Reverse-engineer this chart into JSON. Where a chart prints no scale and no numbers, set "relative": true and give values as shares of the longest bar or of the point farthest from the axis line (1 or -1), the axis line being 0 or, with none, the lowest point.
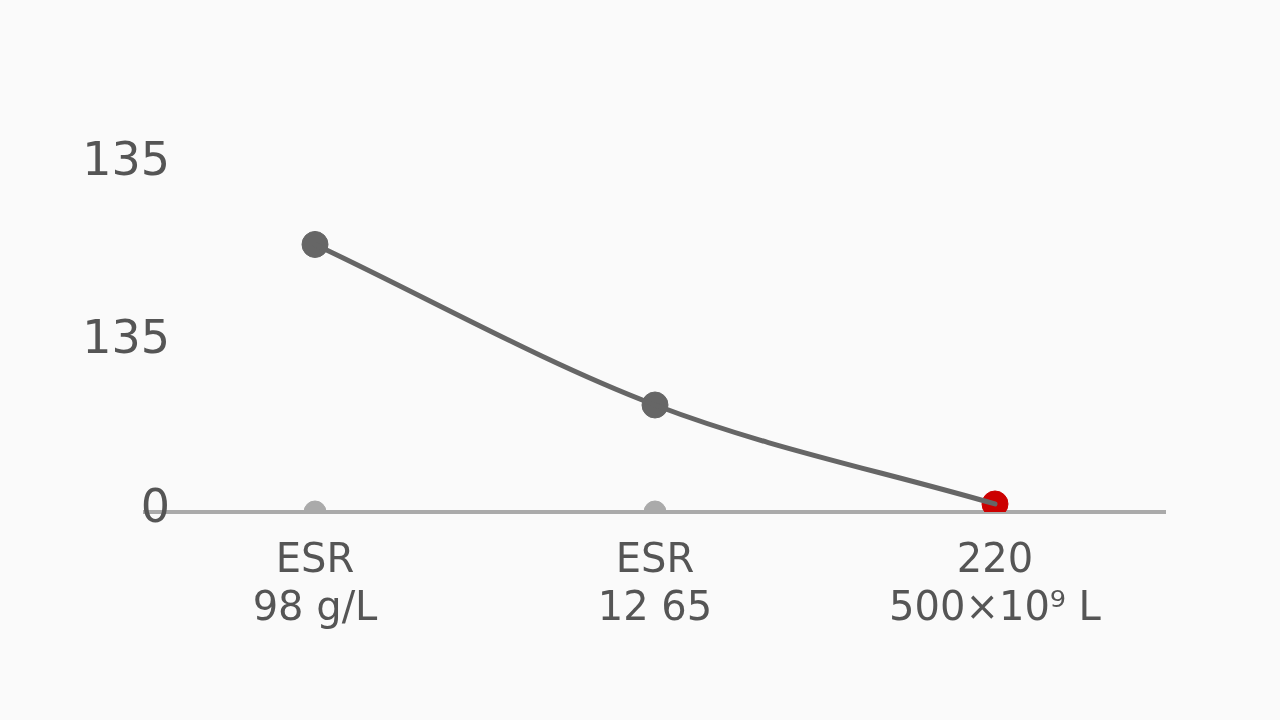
{
  "chart_data": {
    "type": "line",
    "relative": true,
    "categories": [
      "ESR\n98 g/L",
      "ESR\n12 65",
      "220\n500×10⁹ L"
    ],
    "series": [
      {
        "color": "#666666",
        "colors": [
          "#666666",
          "#666666",
          "#cc0000"
        ],
        "values": [
          1,
          0.4,
          0.03
        ]
      },
      {
        "type": "scatter",
        "color": "#aaaaaa",
        "values": [
          0,
          0,
          null
        ]
      }
    ],
    "annotations": [
      "135",
      "135",
      "0"
    ],
    "grid": false,
    "legend": false,
    "marker": "circle"
  }
}
